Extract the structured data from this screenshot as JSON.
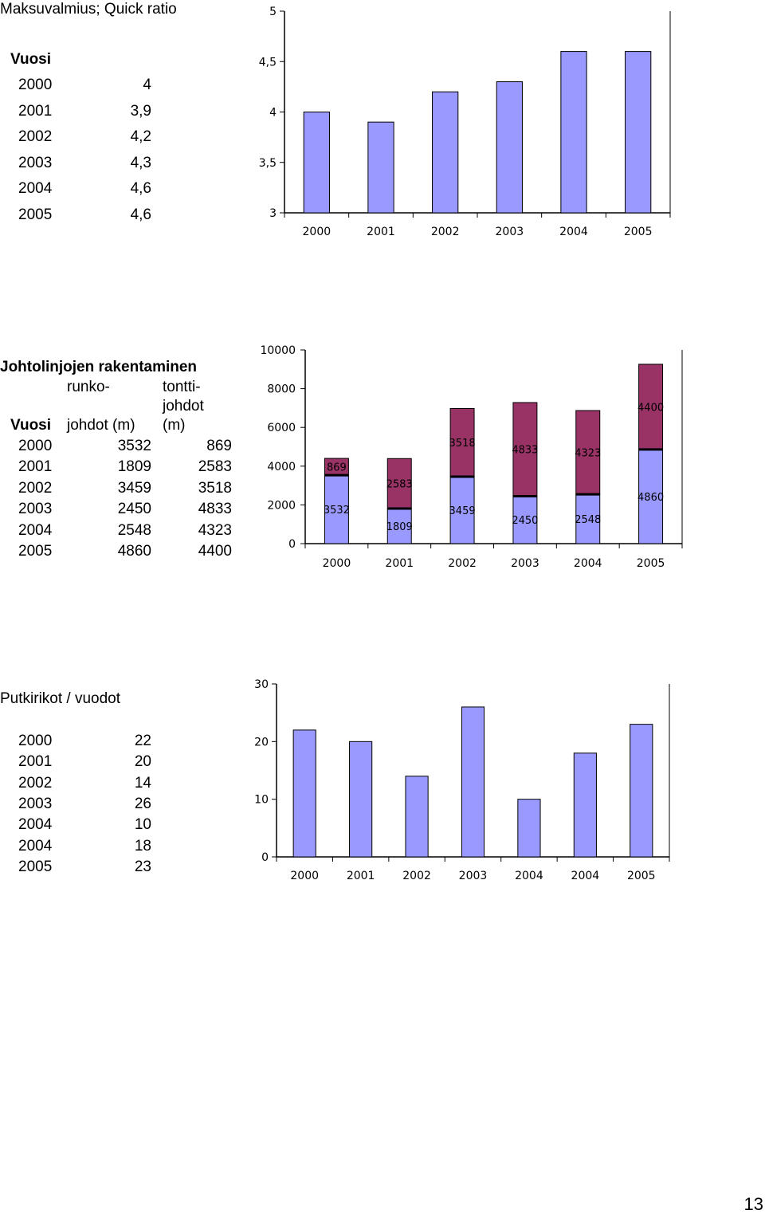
{
  "section1": {
    "title": "Maksuvalmius; Quick ratio",
    "year_header": "Vuosi",
    "rows": [
      {
        "year": "2000",
        "value": "4"
      },
      {
        "year": "2001",
        "value": "3,9"
      },
      {
        "year": "2002",
        "value": "4,2"
      },
      {
        "year": "2003",
        "value": "4,3"
      },
      {
        "year": "2004",
        "value": "4,6"
      },
      {
        "year": "2005",
        "value": "4,6"
      }
    ]
  },
  "section2": {
    "title": "Johtolinjojen rakentaminen",
    "col1_header_line1": "runko-",
    "col1_header_line2": "johdot (m)",
    "col2_header_line1": "tontti-",
    "col2_header_line2": "johdot",
    "col2_header_line3": "(m)",
    "year_header": "Vuosi",
    "rows": [
      {
        "year": "2000",
        "runko": "3532",
        "tontti": "869"
      },
      {
        "year": "2001",
        "runko": "1809",
        "tontti": "2583"
      },
      {
        "year": "2002",
        "runko": "3459",
        "tontti": "3518"
      },
      {
        "year": "2003",
        "runko": "2450",
        "tontti": "4833"
      },
      {
        "year": "2004",
        "runko": "2548",
        "tontti": "4323"
      },
      {
        "year": "2005",
        "runko": "4860",
        "tontti": "4400"
      }
    ]
  },
  "section3": {
    "title": "Putkirikot / vuodot",
    "rows": [
      {
        "year": "2000",
        "value": "22"
      },
      {
        "year": "2001",
        "value": "20"
      },
      {
        "year": "2002",
        "value": "14"
      },
      {
        "year": "2003",
        "value": "26"
      },
      {
        "year": "2004",
        "value": "10"
      },
      {
        "year": "2004",
        "value": "18"
      },
      {
        "year": "2005",
        "value": "23"
      }
    ]
  },
  "page_number": "13",
  "colors": {
    "bar_blue": "#9999ff",
    "bar_maroon": "#993366",
    "bar_outline": "#000000"
  },
  "chart_data": [
    {
      "type": "bar",
      "categories": [
        "2000",
        "2001",
        "2002",
        "2003",
        "2004",
        "2005"
      ],
      "values": [
        4,
        3.9,
        4.2,
        4.3,
        4.6,
        4.6
      ],
      "ylim": [
        3,
        5
      ],
      "yticks": [
        "3",
        "3,5",
        "4",
        "4,5",
        "5"
      ],
      "grid": false,
      "legend": "none"
    },
    {
      "type": "bar",
      "stacked": true,
      "categories": [
        "2000",
        "2001",
        "2002",
        "2003",
        "2004",
        "2005"
      ],
      "series": [
        {
          "values": [
            3532,
            1809,
            3459,
            2450,
            2548,
            4860
          ],
          "labels": [
            "3532",
            "1809",
            "3459",
            "2450",
            "2548",
            "4860"
          ]
        },
        {
          "values": [
            869,
            2583,
            3518,
            4833,
            4323,
            4400
          ],
          "labels": [
            "869",
            "2583",
            "3518",
            "4833",
            "4323",
            "4400"
          ]
        }
      ],
      "ylim": [
        0,
        10000
      ],
      "yticks": [
        "0",
        "2000",
        "4000",
        "6000",
        "8000",
        "10000"
      ],
      "grid": false,
      "legend": "none"
    },
    {
      "type": "bar",
      "categories": [
        "2000",
        "2001",
        "2002",
        "2003",
        "2004",
        "2004",
        "2005"
      ],
      "values": [
        22,
        20,
        14,
        26,
        10,
        18,
        23
      ],
      "ylim": [
        0,
        30
      ],
      "yticks": [
        "0",
        "10",
        "20",
        "30"
      ],
      "grid": false,
      "legend": "none"
    }
  ]
}
